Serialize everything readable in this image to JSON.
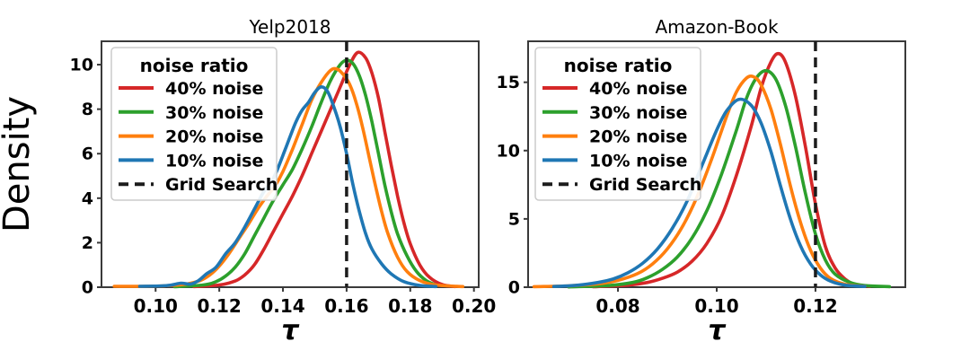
{
  "figure_background": "#ffffff",
  "palette": {
    "red": "#d62728",
    "green": "#2ca02c",
    "orange": "#ff7f0e",
    "blue": "#1f77b4",
    "grid_search": "#1c1c1c",
    "spine": "#3a3a3a",
    "legend_border": "#cccccc",
    "legend_background": "#ffffff"
  },
  "legend": {
    "title": "noise ratio",
    "entries": [
      {
        "label": "40% noise",
        "color": "#d62728",
        "dash": false
      },
      {
        "label": "30% noise",
        "color": "#2ca02c",
        "dash": false
      },
      {
        "label": "20% noise",
        "color": "#ff7f0e",
        "dash": false
      },
      {
        "label": "10% noise",
        "color": "#1f77b4",
        "dash": false
      },
      {
        "label": "Grid Search",
        "color": "#1c1c1c",
        "dash": true
      }
    ]
  },
  "chart_data": [
    {
      "type": "line",
      "title": "Yelp2018",
      "xlabel": "τ",
      "ylabel": "Density",
      "xlim": [
        0.083,
        0.2015
      ],
      "ylim": [
        0,
        11.05
      ],
      "grid": false,
      "legend_position": "upper left",
      "xticks": [
        {
          "v": 0.1,
          "label": "0.10"
        },
        {
          "v": 0.12,
          "label": "0.12"
        },
        {
          "v": 0.14,
          "label": "0.14"
        },
        {
          "v": 0.16,
          "label": "0.16"
        },
        {
          "v": 0.18,
          "label": "0.18"
        },
        {
          "v": 0.2,
          "label": "0.20"
        }
      ],
      "yticks": [
        {
          "v": 0,
          "label": "0"
        },
        {
          "v": 2,
          "label": "2"
        },
        {
          "v": 4,
          "label": "4"
        },
        {
          "v": 6,
          "label": "6"
        },
        {
          "v": 8,
          "label": "8"
        },
        {
          "v": 10,
          "label": "10"
        }
      ],
      "vline": {
        "x": 0.16,
        "label": "Grid Search",
        "style": "dashed",
        "color": "#1c1c1c"
      },
      "series": [
        {
          "name": "40% noise",
          "color": "#d62728",
          "points": [
            [
              0.112,
              0.03
            ],
            [
              0.12,
              0.1
            ],
            [
              0.125,
              0.28
            ],
            [
              0.128,
              0.55
            ],
            [
              0.131,
              1.0
            ],
            [
              0.134,
              1.7
            ],
            [
              0.137,
              2.5
            ],
            [
              0.14,
              3.3
            ],
            [
              0.143,
              4.1
            ],
            [
              0.146,
              5.0
            ],
            [
              0.149,
              6.0
            ],
            [
              0.152,
              7.0
            ],
            [
              0.155,
              8.0
            ],
            [
              0.158,
              9.0
            ],
            [
              0.161,
              10.0
            ],
            [
              0.1635,
              10.55
            ],
            [
              0.166,
              10.3
            ],
            [
              0.168,
              9.6
            ],
            [
              0.17,
              8.5
            ],
            [
              0.172,
              7.0
            ],
            [
              0.174,
              5.5
            ],
            [
              0.176,
              4.1
            ],
            [
              0.178,
              2.9
            ],
            [
              0.18,
              1.95
            ],
            [
              0.183,
              1.0
            ],
            [
              0.186,
              0.45
            ],
            [
              0.19,
              0.12
            ],
            [
              0.194,
              0.03
            ]
          ]
        },
        {
          "name": "30% noise",
          "color": "#2ca02c",
          "points": [
            [
              0.106,
              0.02
            ],
            [
              0.115,
              0.1
            ],
            [
              0.119,
              0.25
            ],
            [
              0.122,
              0.5
            ],
            [
              0.125,
              0.9
            ],
            [
              0.128,
              1.5
            ],
            [
              0.131,
              2.3
            ],
            [
              0.134,
              3.1
            ],
            [
              0.137,
              3.9
            ],
            [
              0.14,
              4.6
            ],
            [
              0.143,
              5.3
            ],
            [
              0.146,
              6.2
            ],
            [
              0.149,
              7.2
            ],
            [
              0.152,
              8.3
            ],
            [
              0.155,
              9.3
            ],
            [
              0.158,
              10.0
            ],
            [
              0.16,
              10.2
            ],
            [
              0.162,
              10.05
            ],
            [
              0.164,
              9.5
            ],
            [
              0.166,
              8.6
            ],
            [
              0.168,
              7.4
            ],
            [
              0.17,
              6.0
            ],
            [
              0.172,
              4.6
            ],
            [
              0.174,
              3.4
            ],
            [
              0.176,
              2.4
            ],
            [
              0.179,
              1.4
            ],
            [
              0.182,
              0.7
            ],
            [
              0.185,
              0.3
            ],
            [
              0.188,
              0.1
            ]
          ]
        },
        {
          "name": "20% noise",
          "color": "#ff7f0e",
          "points": [
            [
              0.087,
              0.04
            ],
            [
              0.097,
              0.04
            ],
            [
              0.105,
              0.08
            ],
            [
              0.11,
              0.15
            ],
            [
              0.114,
              0.3
            ],
            [
              0.117,
              0.55
            ],
            [
              0.12,
              0.95
            ],
            [
              0.123,
              1.5
            ],
            [
              0.126,
              2.15
            ],
            [
              0.129,
              2.8
            ],
            [
              0.132,
              3.5
            ],
            [
              0.135,
              4.1
            ],
            [
              0.1375,
              4.55
            ],
            [
              0.14,
              5.2
            ],
            [
              0.143,
              6.2
            ],
            [
              0.146,
              7.3
            ],
            [
              0.149,
              8.4
            ],
            [
              0.152,
              9.2
            ],
            [
              0.155,
              9.75
            ],
            [
              0.157,
              9.8
            ],
            [
              0.159,
              9.55
            ],
            [
              0.161,
              9.1
            ],
            [
              0.163,
              8.3
            ],
            [
              0.165,
              7.2
            ],
            [
              0.167,
              5.9
            ],
            [
              0.169,
              4.6
            ],
            [
              0.171,
              3.4
            ],
            [
              0.173,
              2.4
            ],
            [
              0.176,
              1.35
            ],
            [
              0.179,
              0.7
            ],
            [
              0.183,
              0.3
            ],
            [
              0.188,
              0.1
            ],
            [
              0.1965,
              0.03
            ]
          ]
        },
        {
          "name": "10% noise",
          "color": "#1f77b4",
          "points": [
            [
              0.095,
              0.04
            ],
            [
              0.102,
              0.06
            ],
            [
              0.105,
              0.1
            ],
            [
              0.108,
              0.18
            ],
            [
              0.111,
              0.14
            ],
            [
              0.1135,
              0.3
            ],
            [
              0.116,
              0.6
            ],
            [
              0.119,
              0.9
            ],
            [
              0.122,
              1.5
            ],
            [
              0.125,
              2.0
            ],
            [
              0.128,
              2.7
            ],
            [
              0.131,
              3.5
            ],
            [
              0.134,
              4.3
            ],
            [
              0.136,
              4.65
            ],
            [
              0.138,
              5.2
            ],
            [
              0.141,
              6.3
            ],
            [
              0.144,
              7.4
            ],
            [
              0.146,
              7.95
            ],
            [
              0.148,
              8.3
            ],
            [
              0.15,
              8.75
            ],
            [
              0.152,
              9.0
            ],
            [
              0.154,
              8.8
            ],
            [
              0.156,
              8.1
            ],
            [
              0.158,
              7.2
            ],
            [
              0.16,
              6.0
            ],
            [
              0.162,
              4.6
            ],
            [
              0.164,
              3.4
            ],
            [
              0.166,
              2.4
            ],
            [
              0.168,
              1.7
            ],
            [
              0.171,
              1.05
            ],
            [
              0.174,
              0.6
            ],
            [
              0.178,
              0.25
            ],
            [
              0.183,
              0.08
            ],
            [
              0.188,
              0.03
            ]
          ]
        }
      ]
    },
    {
      "type": "line",
      "title": "Amazon-Book",
      "xlabel": "τ",
      "ylabel": "",
      "xlim": [
        0.0618,
        0.1382
      ],
      "ylim": [
        0,
        18.0
      ],
      "grid": false,
      "legend_position": "upper left",
      "xticks": [
        {
          "v": 0.08,
          "label": "0.08"
        },
        {
          "v": 0.1,
          "label": "0.10"
        },
        {
          "v": 0.12,
          "label": "0.12"
        }
      ],
      "yticks": [
        {
          "v": 0,
          "label": "0"
        },
        {
          "v": 5,
          "label": "5"
        },
        {
          "v": 10,
          "label": "10"
        },
        {
          "v": 15,
          "label": "15"
        }
      ],
      "vline": {
        "x": 0.12,
        "label": "Grid Search",
        "style": "dashed",
        "color": "#1c1c1c"
      },
      "series": [
        {
          "name": "40% noise",
          "color": "#d62728",
          "points": [
            [
              0.075,
              0.03
            ],
            [
              0.082,
              0.15
            ],
            [
              0.086,
              0.35
            ],
            [
              0.089,
              0.65
            ],
            [
              0.092,
              1.1
            ],
            [
              0.095,
              1.9
            ],
            [
              0.098,
              3.2
            ],
            [
              0.101,
              5.2
            ],
            [
              0.104,
              8.2
            ],
            [
              0.107,
              11.8
            ],
            [
              0.109,
              14.6
            ],
            [
              0.111,
              16.5
            ],
            [
              0.1125,
              17.1
            ],
            [
              0.114,
              16.4
            ],
            [
              0.116,
              13.9
            ],
            [
              0.118,
              10.2
            ],
            [
              0.12,
              6.1
            ],
            [
              0.122,
              3.0
            ],
            [
              0.124,
              1.4
            ],
            [
              0.126,
              0.6
            ],
            [
              0.128,
              0.2
            ],
            [
              0.131,
              0.06
            ]
          ]
        },
        {
          "name": "30% noise",
          "color": "#2ca02c",
          "points": [
            [
              0.07,
              0.02
            ],
            [
              0.078,
              0.12
            ],
            [
              0.083,
              0.35
            ],
            [
              0.086,
              0.7
            ],
            [
              0.089,
              1.3
            ],
            [
              0.092,
              2.2
            ],
            [
              0.095,
              3.6
            ],
            [
              0.098,
              5.6
            ],
            [
              0.101,
              8.3
            ],
            [
              0.104,
              11.5
            ],
            [
              0.106,
              13.8
            ],
            [
              0.108,
              15.3
            ],
            [
              0.11,
              15.85
            ],
            [
              0.112,
              15.2
            ],
            [
              0.114,
              13.2
            ],
            [
              0.116,
              10.2
            ],
            [
              0.118,
              6.8
            ],
            [
              0.12,
              3.9
            ],
            [
              0.122,
              2.0
            ],
            [
              0.124,
              0.95
            ],
            [
              0.127,
              0.35
            ],
            [
              0.13,
              0.12
            ],
            [
              0.135,
              0.04
            ]
          ]
        },
        {
          "name": "20% noise",
          "color": "#ff7f0e",
          "points": [
            [
              0.063,
              0.04
            ],
            [
              0.07,
              0.1
            ],
            [
              0.076,
              0.25
            ],
            [
              0.08,
              0.5
            ],
            [
              0.084,
              1.0
            ],
            [
              0.087,
              1.7
            ],
            [
              0.09,
              2.8
            ],
            [
              0.093,
              4.4
            ],
            [
              0.096,
              6.6
            ],
            [
              0.099,
              9.4
            ],
            [
              0.102,
              12.5
            ],
            [
              0.104,
              14.3
            ],
            [
              0.106,
              15.3
            ],
            [
              0.1075,
              15.4
            ],
            [
              0.109,
              14.8
            ],
            [
              0.111,
              13.0
            ],
            [
              0.113,
              10.3
            ],
            [
              0.115,
              7.3
            ],
            [
              0.117,
              4.7
            ],
            [
              0.119,
              2.7
            ],
            [
              0.121,
              1.4
            ],
            [
              0.123,
              0.65
            ],
            [
              0.126,
              0.22
            ],
            [
              0.13,
              0.06
            ]
          ]
        },
        {
          "name": "10% noise",
          "color": "#1f77b4",
          "points": [
            [
              0.067,
              0.05
            ],
            [
              0.072,
              0.15
            ],
            [
              0.076,
              0.35
            ],
            [
              0.079,
              0.6
            ],
            [
              0.082,
              1.05
            ],
            [
              0.085,
              1.75
            ],
            [
              0.088,
              2.8
            ],
            [
              0.091,
              4.3
            ],
            [
              0.094,
              6.3
            ],
            [
              0.097,
              8.9
            ],
            [
              0.1,
              11.5
            ],
            [
              0.102,
              12.9
            ],
            [
              0.1045,
              13.75
            ],
            [
              0.107,
              13.3
            ],
            [
              0.109,
              12.0
            ],
            [
              0.111,
              9.9
            ],
            [
              0.113,
              7.3
            ],
            [
              0.115,
              4.9
            ],
            [
              0.117,
              3.0
            ],
            [
              0.119,
              1.7
            ],
            [
              0.121,
              0.9
            ],
            [
              0.123,
              0.45
            ],
            [
              0.126,
              0.15
            ],
            [
              0.13,
              0.05
            ]
          ]
        }
      ]
    }
  ]
}
